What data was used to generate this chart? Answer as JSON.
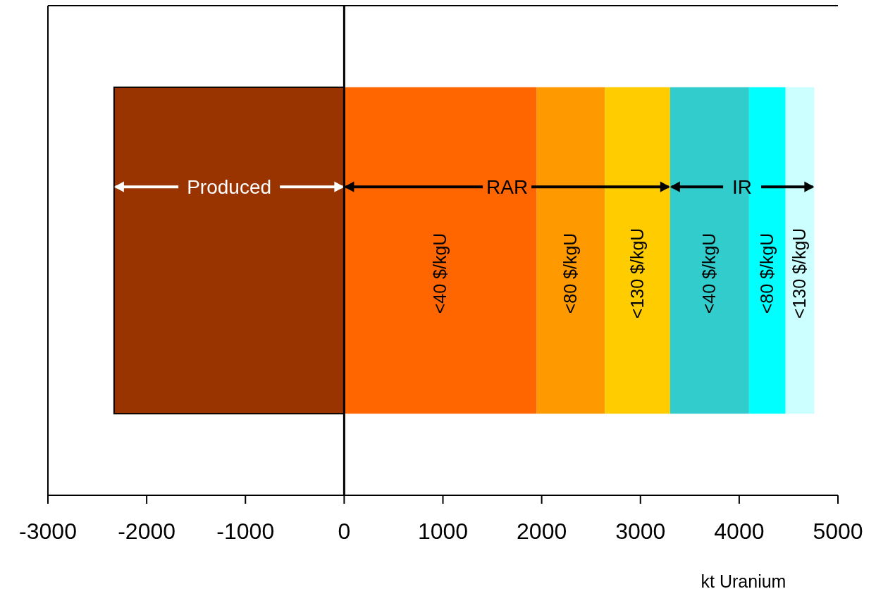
{
  "chart_data": {
    "type": "bar",
    "orientation": "horizontal",
    "stacked": true,
    "categories": [
      null
    ],
    "series": [
      {
        "color": "#993300",
        "values": [
          -2330
        ]
      },
      {
        "name": "<40 $/kgU",
        "color": "#ff6600",
        "values": [
          1950
        ]
      },
      {
        "name": "<80 $/kgU",
        "color": "#ff9900",
        "values": [
          690
        ]
      },
      {
        "name": "<130 $/kgU",
        "color": "#ffcc00",
        "values": [
          660
        ]
      },
      {
        "name": "<40 $/kgU",
        "color": "#33cccc",
        "values": [
          800
        ]
      },
      {
        "name": "<80 $/kgU",
        "color": "#00ffff",
        "values": [
          370
        ]
      },
      {
        "name": "<130 $/kgU",
        "color": "#ccffff",
        "values": [
          290
        ]
      }
    ],
    "xlim": [
      -3000,
      5000
    ],
    "xticks": [
      -3000,
      -2000,
      -1000,
      0,
      1000,
      2000,
      3000,
      4000,
      5000
    ],
    "xlabel": "kt Uranium",
    "annotations": [
      "Produced",
      "RAR",
      "IR"
    ]
  }
}
